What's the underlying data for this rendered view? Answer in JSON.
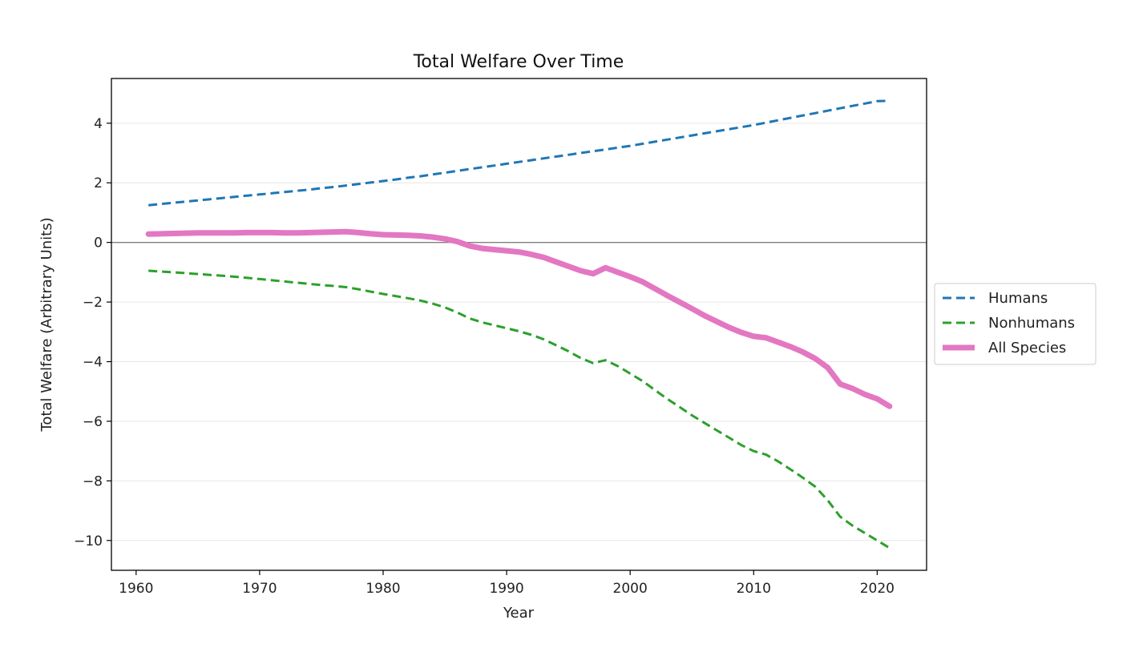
{
  "chart_data": {
    "type": "line",
    "title": "Total Welfare Over Time",
    "xlabel": "Year",
    "ylabel": "Total Welfare (Arbitrary Units)",
    "xlim": [
      1958,
      2024
    ],
    "ylim": [
      -11,
      5.5
    ],
    "xticks": [
      1960,
      1970,
      1980,
      1990,
      2000,
      2010,
      2020
    ],
    "yticks": [
      4,
      2,
      0,
      -2,
      -4,
      -6,
      -8,
      -10
    ],
    "grid": "horizontal",
    "zero_line": true,
    "legend": "center-right outside",
    "x": [
      1961,
      1962,
      1963,
      1964,
      1965,
      1966,
      1967,
      1968,
      1969,
      1970,
      1971,
      1972,
      1973,
      1974,
      1975,
      1976,
      1977,
      1978,
      1979,
      1980,
      1981,
      1982,
      1983,
      1984,
      1985,
      1986,
      1987,
      1988,
      1989,
      1990,
      1991,
      1992,
      1993,
      1994,
      1995,
      1996,
      1997,
      1998,
      1999,
      2000,
      2001,
      2002,
      2003,
      2004,
      2005,
      2006,
      2007,
      2008,
      2009,
      2010,
      2011,
      2012,
      2013,
      2014,
      2015,
      2016,
      2017,
      2018,
      2019,
      2020,
      2021
    ],
    "series": [
      {
        "name": "Humans",
        "color": "#1f77b4",
        "style": "dashed",
        "values": [
          1.25,
          1.29,
          1.33,
          1.37,
          1.41,
          1.45,
          1.49,
          1.53,
          1.57,
          1.61,
          1.65,
          1.69,
          1.73,
          1.77,
          1.82,
          1.86,
          1.91,
          1.96,
          2.01,
          2.06,
          2.11,
          2.17,
          2.22,
          2.28,
          2.34,
          2.4,
          2.46,
          2.52,
          2.58,
          2.64,
          2.7,
          2.76,
          2.82,
          2.88,
          2.94,
          3.0,
          3.06,
          3.12,
          3.18,
          3.24,
          3.31,
          3.38,
          3.45,
          3.52,
          3.59,
          3.66,
          3.73,
          3.8,
          3.87,
          3.94,
          4.02,
          4.1,
          4.18,
          4.26,
          4.34,
          4.42,
          4.5,
          4.58,
          4.66,
          4.74,
          4.75
        ]
      },
      {
        "name": "Nonhumans",
        "color": "#2ca02c",
        "style": "dashed",
        "values": [
          -0.95,
          -0.98,
          -1.0,
          -1.03,
          -1.06,
          -1.09,
          -1.12,
          -1.15,
          -1.19,
          -1.23,
          -1.27,
          -1.31,
          -1.35,
          -1.39,
          -1.43,
          -1.46,
          -1.5,
          -1.57,
          -1.65,
          -1.73,
          -1.8,
          -1.87,
          -1.95,
          -2.05,
          -2.18,
          -2.35,
          -2.55,
          -2.68,
          -2.78,
          -2.88,
          -2.98,
          -3.1,
          -3.25,
          -3.45,
          -3.65,
          -3.88,
          -4.05,
          -3.95,
          -4.15,
          -4.4,
          -4.65,
          -4.95,
          -5.25,
          -5.52,
          -5.8,
          -6.05,
          -6.3,
          -6.55,
          -6.8,
          -7.0,
          -7.12,
          -7.35,
          -7.62,
          -7.9,
          -8.2,
          -8.65,
          -9.2,
          -9.5,
          -9.75,
          -10.0,
          -10.25
        ]
      },
      {
        "name": "All Species",
        "color": "#e377c2",
        "style": "solid-thick",
        "values": [
          0.28,
          0.29,
          0.3,
          0.31,
          0.32,
          0.32,
          0.32,
          0.32,
          0.33,
          0.33,
          0.33,
          0.32,
          0.32,
          0.33,
          0.34,
          0.35,
          0.36,
          0.33,
          0.29,
          0.26,
          0.25,
          0.24,
          0.22,
          0.18,
          0.12,
          0.03,
          -0.12,
          -0.2,
          -0.24,
          -0.28,
          -0.32,
          -0.4,
          -0.5,
          -0.65,
          -0.8,
          -0.95,
          -1.05,
          -0.85,
          -1.0,
          -1.15,
          -1.32,
          -1.55,
          -1.78,
          -2.0,
          -2.22,
          -2.45,
          -2.65,
          -2.85,
          -3.02,
          -3.15,
          -3.2,
          -3.35,
          -3.5,
          -3.68,
          -3.9,
          -4.2,
          -4.75,
          -4.9,
          -5.1,
          -5.25,
          -5.5
        ]
      }
    ]
  }
}
